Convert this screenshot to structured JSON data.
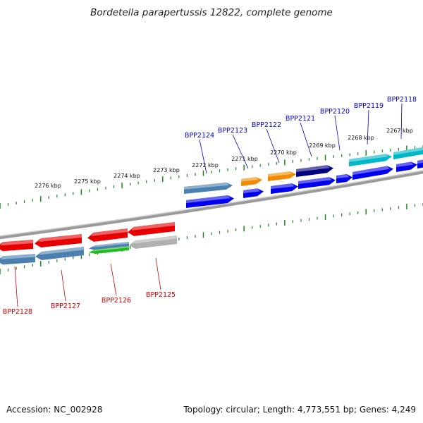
{
  "title": "Bordetella parapertussis 12822, complete genome",
  "footer": {
    "accession": "Accession: NC_002928",
    "summary": "Topology: circular; Length: 4,773,551 bp; Genes: 4,249"
  },
  "ruler": {
    "ticks": [
      "2276 kbp",
      "2275 kbp",
      "2274 kbp",
      "2273 kbp",
      "2272 kbp",
      "2271 kbp",
      "2270 kbp",
      "2269 kbp",
      "2268 kbp",
      "2267 kbp"
    ]
  },
  "genes": {
    "forward_labels": [
      "BPP2124",
      "BPP2123",
      "BPP2122",
      "BPP2121",
      "BPP2120",
      "BPP2119",
      "BPP2118"
    ],
    "reverse_labels": [
      "BPP2128",
      "BPP2127",
      "BPP2126",
      "BPP2125"
    ]
  },
  "colors": {
    "forward_label": "#0000cc",
    "reverse_label": "#cc0000",
    "backbone": "#808080",
    "tick": "#1a8a1a",
    "cds_red": "#e60000",
    "cds_steel": "#4a7fb0",
    "cds_orange": "#f08a00",
    "cds_navy": "#000080",
    "cds_cyan": "#00b8c8",
    "cds_blue": "#0000ee",
    "cds_gray": "#b0b0b0",
    "cds_green": "#22bb22"
  }
}
